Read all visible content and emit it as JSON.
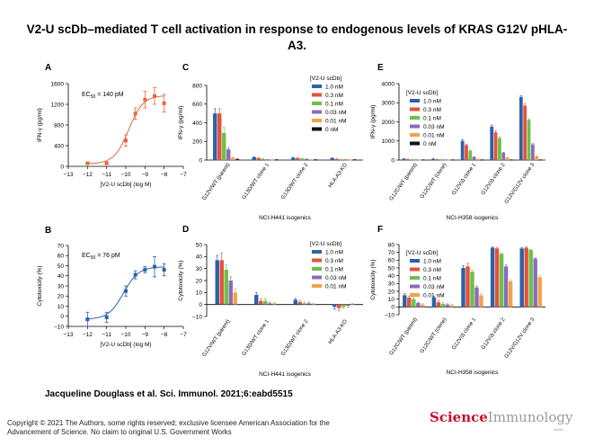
{
  "title": "V2-U scDb–mediated T cell activation in response to endogenous levels of KRAS G12V pHLA-A3.",
  "citation": "Jacqueline Douglass et al. Sci. Immunol. 2021;6:eabd5515",
  "copyright": "Copyright © 2021 The Authors, some rights reserved; exclusive licensee American Association for the Advancement of Science. No claim to original U.S. Government Works",
  "logo": {
    "science": "Science",
    "immunology": "Immunology",
    "sub": "AAAS"
  },
  "colors": {
    "orange": "#e8663a",
    "blue": "#2b61a8",
    "c1": "#2f60a8",
    "c03": "#e2533a",
    "c01": "#6cbf4a",
    "c003": "#8a6cb8",
    "c001": "#f0a34a",
    "c0": "#111111"
  },
  "chart_data": [
    {
      "id": "A",
      "panel_label": "A",
      "type": "scatter",
      "annotation": "EC50 = 140 pM",
      "xlabel": "[V2-U scDb] (log M)",
      "ylabel": "IFN-γ (pg/ml)",
      "xlim": [
        -13,
        -7
      ],
      "ylim": [
        0,
        1600
      ],
      "xticks": [
        "−13",
        "−12",
        "−11",
        "−10",
        "−9",
        "−8",
        "−7"
      ],
      "yticks": [
        "0",
        "400",
        "800",
        "1200",
        "1600"
      ],
      "x": [
        -12,
        -11,
        -10,
        -9.5,
        -9,
        -8.5,
        -8
      ],
      "y": [
        60,
        60,
        500,
        1020,
        1290,
        1360,
        1220
      ],
      "err": [
        20,
        20,
        110,
        110,
        160,
        160,
        170
      ],
      "curve": {
        "bottom": 50,
        "top": 1370,
        "log_ec50": -9.85,
        "hill": 1.15
      }
    },
    {
      "id": "B",
      "panel_label": "B",
      "type": "scatter",
      "annotation": "EC50 = 76 pM",
      "xlabel": "[V2-U scDb] (log M)",
      "ylabel": "Cytotoxicity (%)",
      "xlim": [
        -13,
        -7
      ],
      "ylim": [
        -10,
        70
      ],
      "xticks": [
        "−13",
        "−12",
        "−11",
        "−10",
        "−9",
        "−8",
        "−7"
      ],
      "yticks": [
        "−10",
        "0",
        "10",
        "20",
        "30",
        "40",
        "50",
        "60",
        "70"
      ],
      "x": [
        -12,
        -11,
        -10,
        -9.5,
        -9,
        -8.5,
        -8
      ],
      "y": [
        -3,
        -1,
        25,
        41,
        46,
        49,
        46
      ],
      "err": [
        7,
        5,
        5,
        4,
        3,
        10,
        6
      ],
      "curve": {
        "bottom": -3,
        "top": 49,
        "log_ec50": -10.12,
        "hill": 1.1
      }
    },
    {
      "id": "C",
      "panel_label": "C",
      "type": "bar",
      "xlabel": "NCI-H441 isogenics",
      "ylabel": "IFN-γ (pg/ml)",
      "ylim": [
        0,
        800
      ],
      "yticks": [
        "0",
        "200",
        "400",
        "600",
        "800"
      ],
      "legend_title": "[V2-U scDb]",
      "categories": [
        "G12V/WT (parent)",
        "G13D/WT clone 1",
        "G13D/WT clone 2",
        "HLA-A3-KO"
      ],
      "series": [
        {
          "name": "1.0 nM",
          "color": "#2f60a8",
          "values": [
            500,
            30,
            25,
            20
          ],
          "err": [
            50,
            5,
            4,
            4
          ]
        },
        {
          "name": "0.3 nM",
          "color": "#e2533a",
          "values": [
            500,
            20,
            20,
            10
          ],
          "err": [
            50,
            5,
            4,
            3
          ]
        },
        {
          "name": "0.1 nM",
          "color": "#6cbf4a",
          "values": [
            290,
            12,
            15,
            5
          ],
          "err": [
            60,
            4,
            4,
            2
          ]
        },
        {
          "name": "0.03 nM",
          "color": "#8a6cb8",
          "values": [
            115,
            5,
            10,
            3
          ],
          "err": [
            15,
            2,
            3,
            2
          ]
        },
        {
          "name": "0.01 nM",
          "color": "#f0a34a",
          "values": [
            25,
            3,
            5,
            2
          ],
          "err": [
            5,
            2,
            2,
            1
          ]
        },
        {
          "name": "0 nM",
          "color": "#111111",
          "values": [
            8,
            3,
            3,
            3
          ],
          "err": [
            3,
            2,
            2,
            2
          ]
        }
      ]
    },
    {
      "id": "D",
      "panel_label": "D",
      "type": "bar",
      "xlabel": "NCI-H441 isogenics",
      "ylabel": "Cytotoxicity (%)",
      "ylim": [
        -10,
        50
      ],
      "yticks": [
        "−10",
        "0",
        "10",
        "20",
        "30",
        "40",
        "50"
      ],
      "legend_title": "[V2-U scDb]",
      "categories": [
        "G12V/WT (parent)",
        "G13D/WT clone 1",
        "G13D/WT clone 2",
        "HLA-A3-KO"
      ],
      "series": [
        {
          "name": "1.0 nM",
          "color": "#2f60a8",
          "values": [
            37,
            8,
            4,
            -2
          ],
          "err": [
            4,
            2,
            1,
            2
          ]
        },
        {
          "name": "0.3 nM",
          "color": "#e2533a",
          "values": [
            37,
            3,
            2,
            -3
          ],
          "err": [
            6,
            2,
            1,
            2
          ]
        },
        {
          "name": "0.1 nM",
          "color": "#6cbf4a",
          "values": [
            29,
            3,
            1,
            -2
          ],
          "err": [
            4,
            2,
            1,
            1
          ]
        },
        {
          "name": "0.03 nM",
          "color": "#8a6cb8",
          "values": [
            20,
            1,
            1,
            -1
          ],
          "err": [
            3,
            1,
            1,
            1
          ]
        },
        {
          "name": "0.01 nM",
          "color": "#f0a34a",
          "values": [
            10,
            1,
            0,
            0
          ],
          "err": [
            3,
            1,
            1,
            1
          ]
        }
      ]
    },
    {
      "id": "E",
      "panel_label": "E",
      "type": "bar",
      "xlabel": "NCI-H358 isogenics",
      "ylabel": "IFN-γ (pg/ml)",
      "ylim": [
        0,
        4000
      ],
      "yticks": [
        "0",
        "1000",
        "2000",
        "3000",
        "4000"
      ],
      "legend_title": "[V2-U scDb]",
      "categories": [
        "G12C/WT (parent)",
        "G12C/WT (clone)",
        "G12V/Δ clone 1",
        "G12V/Δ clone 2",
        "G12V/G12V clone 3"
      ],
      "series": [
        {
          "name": "1.0 nM",
          "color": "#2f60a8",
          "values": [
            60,
            60,
            1000,
            1750,
            3300
          ],
          "err": [
            15,
            15,
            60,
            80,
            60
          ]
        },
        {
          "name": "0.3 nM",
          "color": "#e2533a",
          "values": [
            40,
            30,
            780,
            1450,
            2850
          ],
          "err": [
            10,
            10,
            60,
            80,
            80
          ]
        },
        {
          "name": "0.1 nM",
          "color": "#6cbf4a",
          "values": [
            20,
            20,
            480,
            1150,
            2100
          ],
          "err": [
            8,
            8,
            40,
            60,
            60
          ]
        },
        {
          "name": "0.03 nM",
          "color": "#8a6cb8",
          "values": [
            10,
            10,
            160,
            380,
            820
          ],
          "err": [
            5,
            5,
            20,
            30,
            40
          ]
        },
        {
          "name": "0.01 nM",
          "color": "#f0a34a",
          "values": [
            10,
            10,
            50,
            120,
            200
          ],
          "err": [
            5,
            5,
            10,
            15,
            20
          ]
        },
        {
          "name": "0 nM",
          "color": "#111111",
          "values": [
            10,
            10,
            10,
            10,
            10
          ],
          "err": [
            5,
            5,
            5,
            5,
            5
          ]
        }
      ]
    },
    {
      "id": "F",
      "panel_label": "F",
      "type": "bar",
      "xlabel": "NCI-H358 isogenics",
      "ylabel": "Cytotoxicity (%)",
      "ylim": [
        -10,
        80
      ],
      "yticks": [
        "−10",
        "0",
        "10",
        "20",
        "30",
        "40",
        "50",
        "60",
        "70",
        "80"
      ],
      "legend_title": "[V2-U scDb]",
      "categories": [
        "G12C/WT (parent)",
        "G12C/WT (clone)",
        "G12V/Δ clone 1",
        "G12V/Δ clone 2",
        "G12V/G12V clone 3"
      ],
      "series": [
        {
          "name": "1.0 nM",
          "color": "#2f60a8",
          "values": [
            15,
            12,
            50,
            76,
            75
          ],
          "err": [
            2,
            2,
            3,
            1,
            1
          ]
        },
        {
          "name": "0.3 nM",
          "color": "#e2533a",
          "values": [
            12,
            6,
            52,
            75,
            76
          ],
          "err": [
            2,
            2,
            4,
            1,
            1
          ]
        },
        {
          "name": "0.1 nM",
          "color": "#6cbf4a",
          "values": [
            10,
            4,
            45,
            68,
            73
          ],
          "err": [
            2,
            2,
            2,
            1,
            1
          ]
        },
        {
          "name": "0.03 nM",
          "color": "#8a6cb8",
          "values": [
            5,
            3,
            25,
            52,
            62
          ],
          "err": [
            1,
            1,
            2,
            2,
            1
          ]
        },
        {
          "name": "0.01 nM",
          "color": "#f0a34a",
          "values": [
            3,
            2,
            15,
            33,
            38
          ],
          "err": [
            1,
            1,
            2,
            2,
            2
          ]
        }
      ]
    }
  ]
}
